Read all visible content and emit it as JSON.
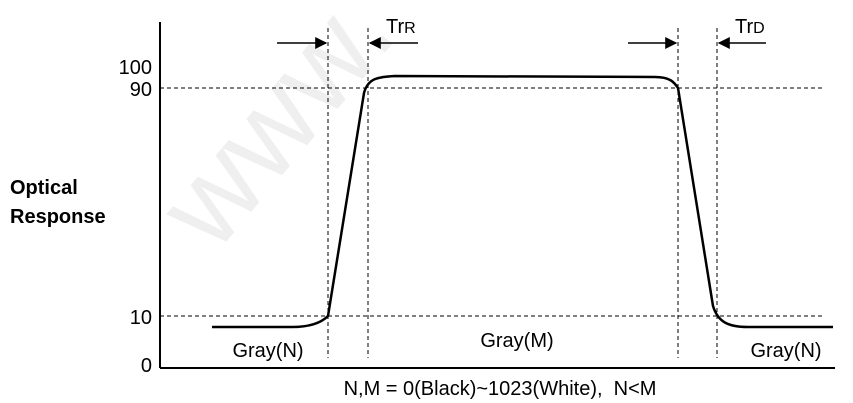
{
  "y_axis": {
    "label_line1": "Optical",
    "label_line2": "Response",
    "ticks": [
      "100",
      "90",
      "10",
      "0"
    ]
  },
  "timing_labels": {
    "rise_main": "Tr",
    "rise_sub": "R",
    "decay_main": "Tr",
    "decay_sub": "D"
  },
  "regions": {
    "left": "Gray(N)",
    "middle": "Gray(M)",
    "right": "Gray(N)"
  },
  "caption": "N,M = 0(Black)~1023(White),  N<M",
  "watermark": "www."
}
